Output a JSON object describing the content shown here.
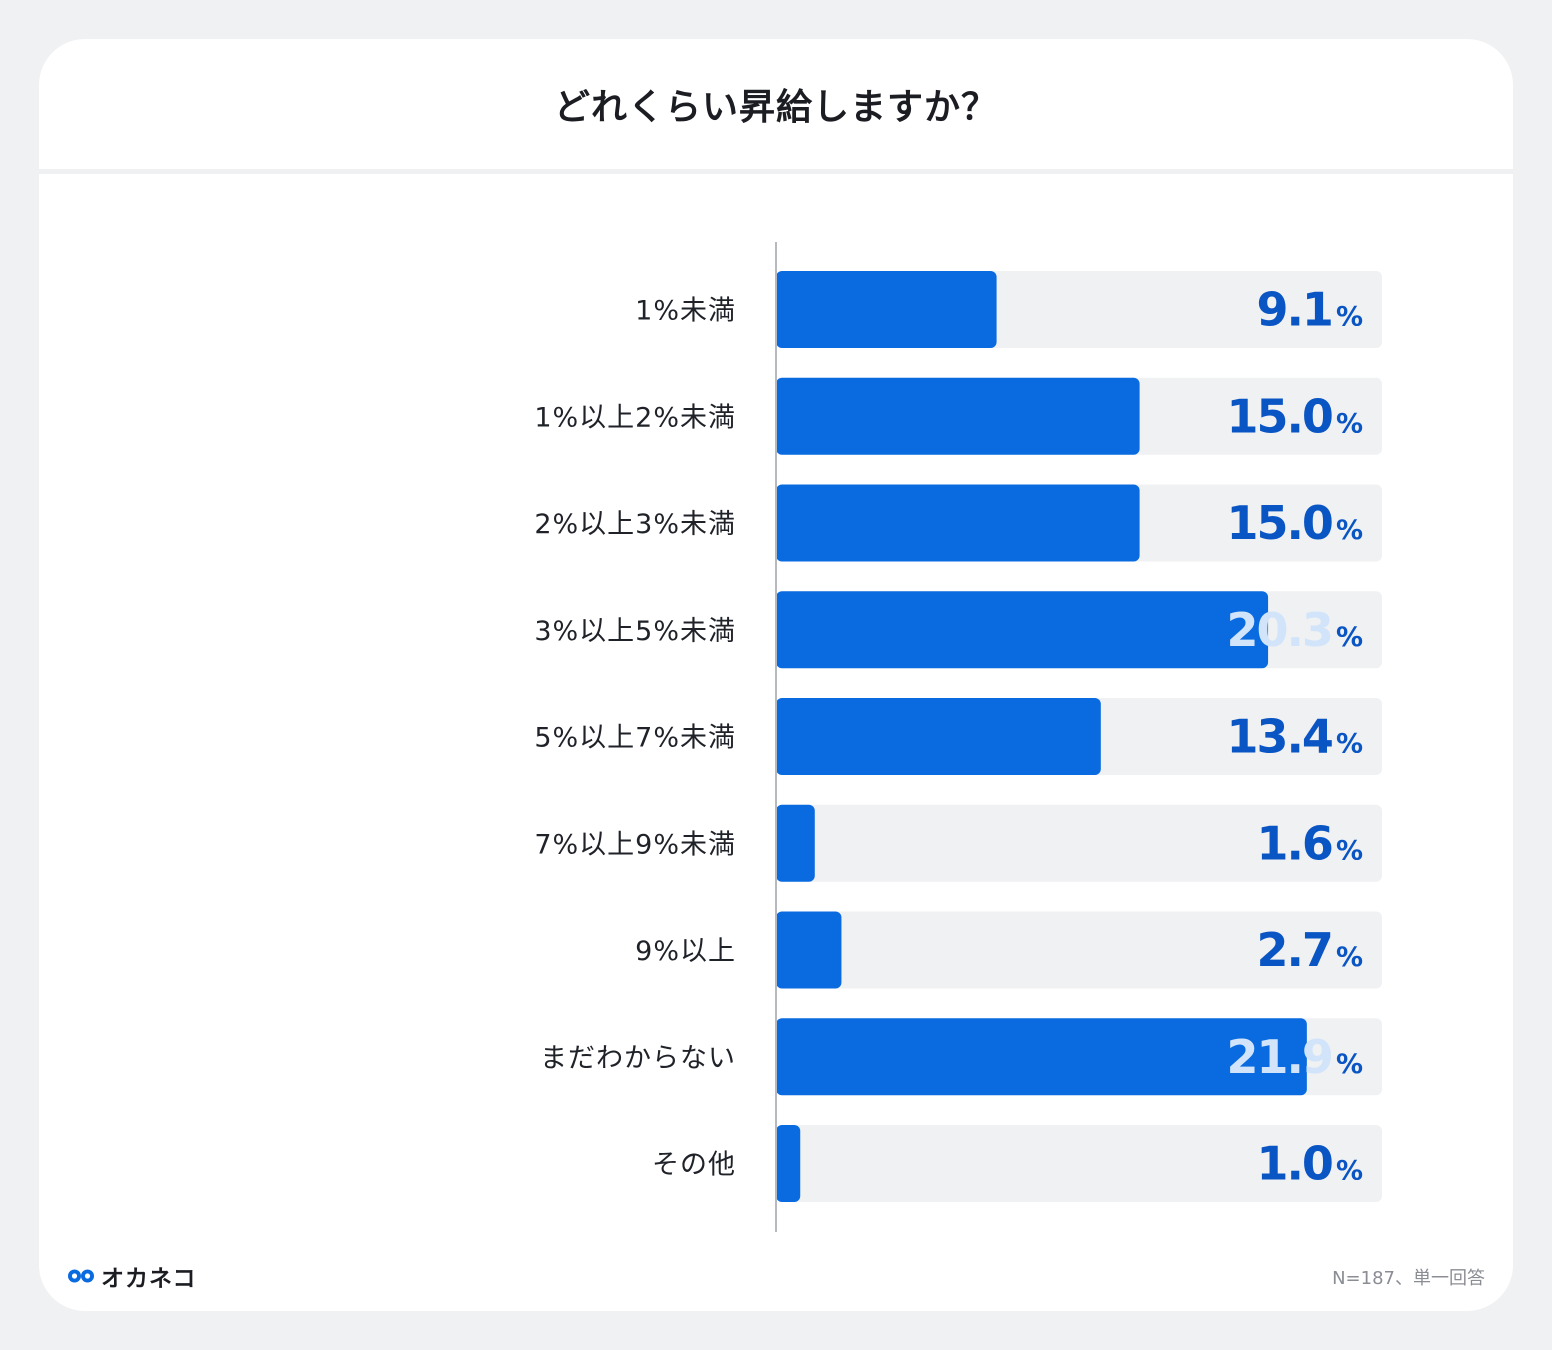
{
  "header": {
    "title": "どれくらい昇給しますか？"
  },
  "brand": {
    "name": "オカネコ",
    "logo_icon": "infinity-logo-icon",
    "color": "#0a6be0"
  },
  "footnote": "N=187、単一回答",
  "colors": {
    "bar": "#0a6be0",
    "track": "#f0f1f3",
    "value_text": "#0a55c4",
    "value_text_on_bar": "#d2e4fa",
    "axis": "#b6b9be"
  },
  "chart_data": {
    "type": "bar",
    "orientation": "horizontal",
    "categories": [
      "1%未満",
      "1%以上2%未満",
      "2%以上3%未満",
      "3%以上5%未満",
      "5%以上7%未満",
      "7%以上9%未満",
      "9%以上",
      "まだわからない",
      "その他"
    ],
    "values": [
      9.1,
      15.0,
      15.0,
      20.3,
      13.4,
      1.6,
      2.7,
      21.9,
      1.0
    ],
    "value_labels": [
      "9.1",
      "15.0",
      "15.0",
      "20.3",
      "13.4",
      "1.6",
      "2.7",
      "21.9",
      "1.0"
    ],
    "unit": "%",
    "xlim": [
      0,
      25
    ],
    "title": "どれくらい昇給しますか？",
    "grid": false,
    "legend": "none"
  }
}
